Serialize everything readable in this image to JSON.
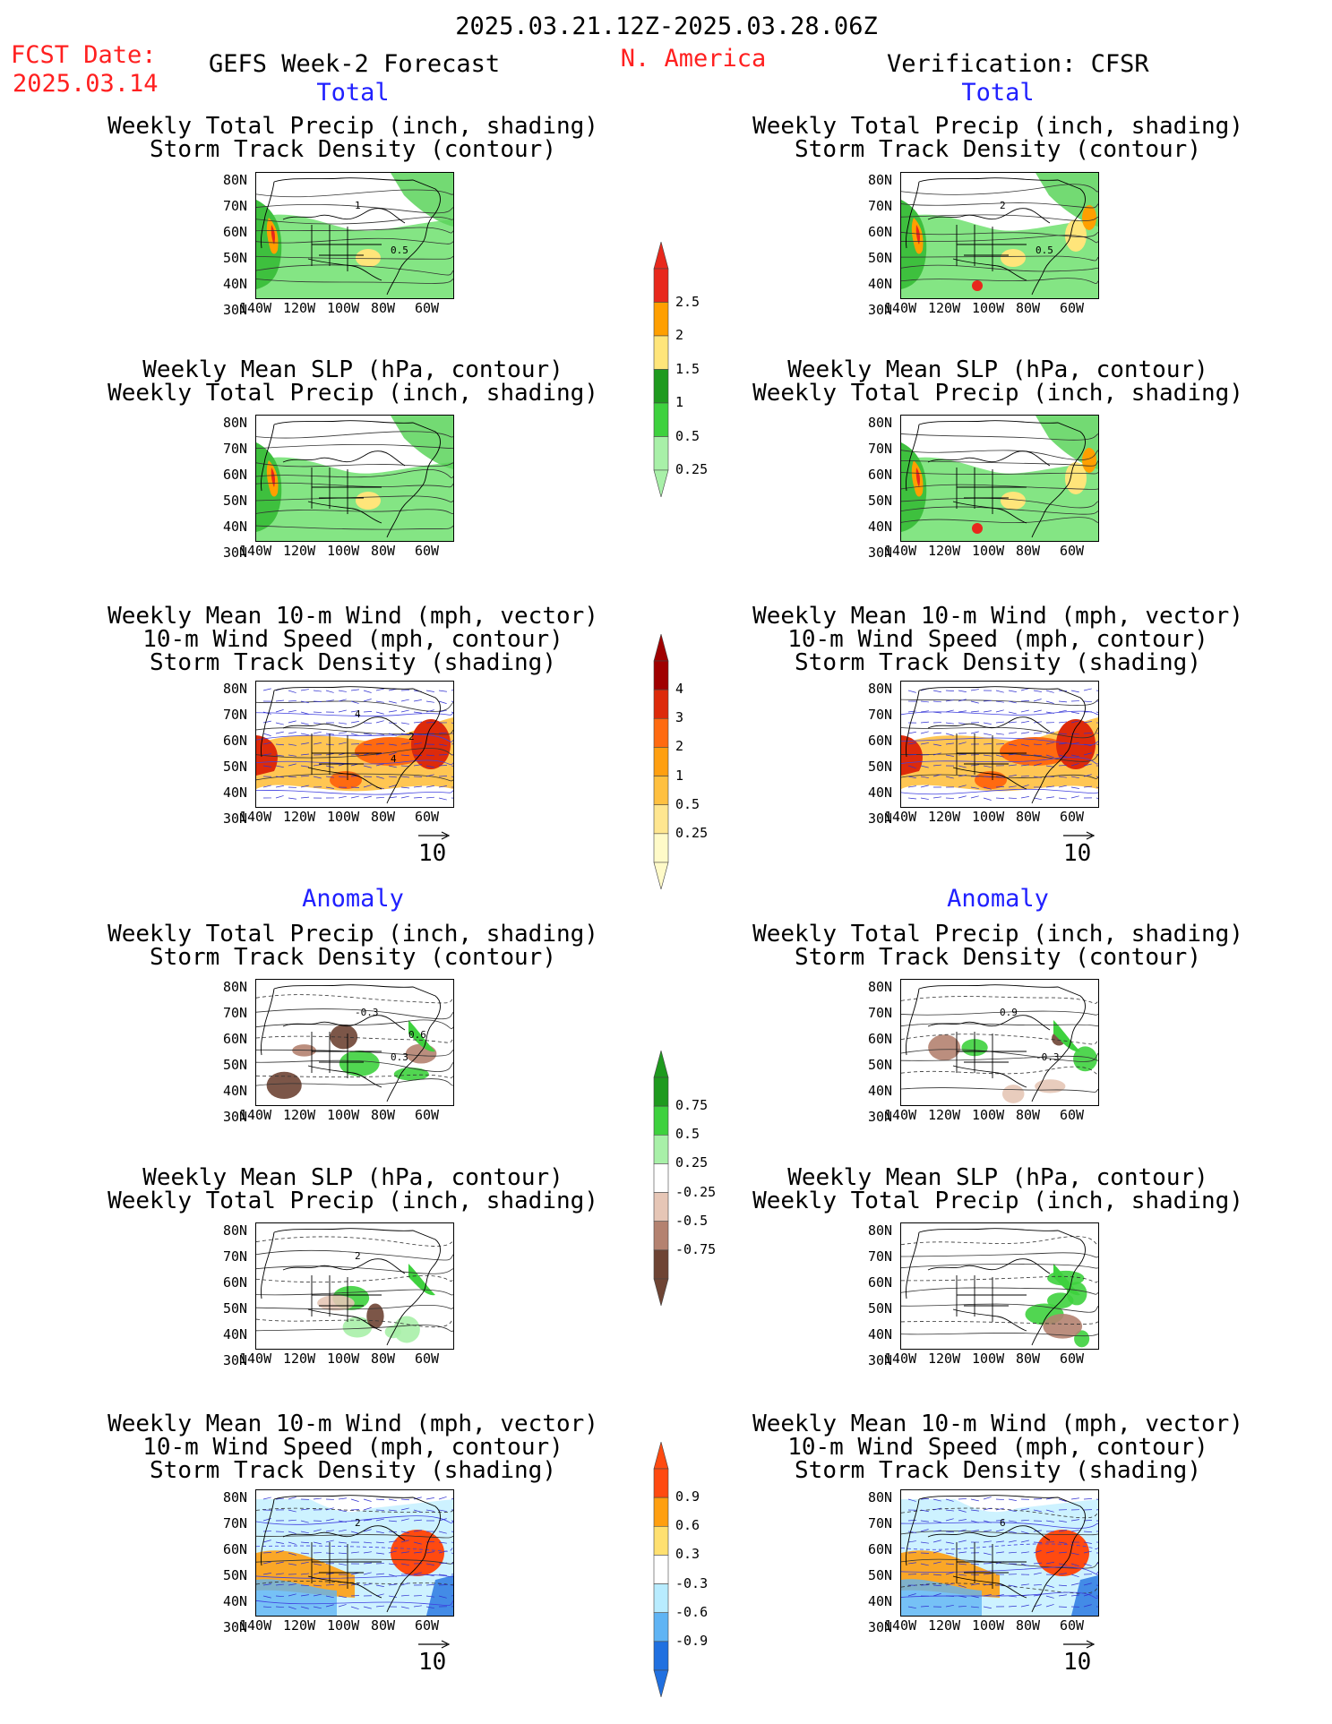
{
  "header": {
    "date_range": "2025.03.21.12Z-2025.03.28.06Z",
    "fcst_label": "FCST Date:",
    "fcst_date": "2025.03.14",
    "model_title": "GEFS Week-2 Forecast",
    "region": "N. America",
    "verification": "Verification: CFSR"
  },
  "section_labels": {
    "total": "Total",
    "anomaly": "Anomaly"
  },
  "titles": {
    "precip_storm": [
      "Weekly Total Precip (inch, shading)",
      "Storm Track Density (contour)"
    ],
    "slp_precip": [
      "Weekly Mean SLP (hPa, contour)",
      "Weekly Total Precip (inch, shading)"
    ],
    "wind_storm": [
      "Weekly Mean 10-m Wind (mph, vector)",
      "10-m Wind Speed (mph, contour)",
      "Storm Track Density (shading)"
    ]
  },
  "axes": {
    "lat": [
      "80N",
      "70N",
      "60N",
      "50N",
      "40N",
      "30N"
    ],
    "lon": [
      "140W",
      "120W",
      "100W",
      "80W",
      "60W"
    ]
  },
  "vector_key": "10",
  "colorbars": {
    "precip_total": {
      "labels": [
        "2.5",
        "2",
        "1.5",
        "1",
        "0.5",
        "0.25"
      ],
      "colors": [
        "#e8281c",
        "#ff9f00",
        "#ffe57a",
        "#1e9a1e",
        "#3ed13e",
        "#a8f0a8"
      ]
    },
    "storm_total": {
      "labels": [
        "4",
        "3",
        "2",
        "1",
        "0.5",
        "0.25"
      ],
      "colors": [
        "#a00000",
        "#dd2a0a",
        "#ff6a10",
        "#ff9f10",
        "#ffc040",
        "#ffe690",
        "#fffac8"
      ]
    },
    "precip_anom": {
      "labels": [
        "0.75",
        "0.5",
        "0.25",
        "-0.25",
        "-0.5",
        "-0.75"
      ],
      "colors": [
        "#1e9a1e",
        "#3ed13e",
        "#a8f0a8",
        "#ffffff",
        "#e6c6b6",
        "#b48270",
        "#6e4434"
      ]
    },
    "storm_anom": {
      "labels": [
        "0.9",
        "0.6",
        "0.3",
        "-0.3",
        "-0.6",
        "-0.9"
      ],
      "colors": [
        "#ff4a10",
        "#ff9f10",
        "#ffe070",
        "#ffffff",
        "#b8ecff",
        "#60b4f4",
        "#2070e0"
      ]
    }
  },
  "contour_labels": {
    "l_precip_total": [
      "1",
      "0.5"
    ],
    "r_precip_total": [
      "2",
      "0.5"
    ],
    "l_wind_total": [
      "4",
      "4",
      "2"
    ],
    "l_precip_anom": [
      "-0.3",
      "0.3",
      "0.6"
    ],
    "r_precip_anom": [
      "0.9",
      "-0.3"
    ],
    "l_slp_anom": [
      "2"
    ],
    "l_wind_anom": [
      "2"
    ],
    "r_wind_anom": [
      "6"
    ]
  }
}
